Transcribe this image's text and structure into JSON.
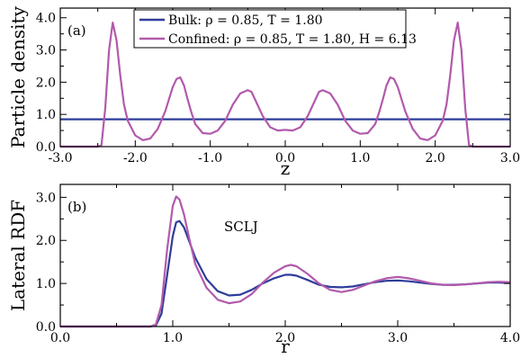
{
  "chart_data": [
    {
      "type": "line",
      "panel_label": "(a)",
      "xlabel": "z",
      "ylabel": "Particle density",
      "xlim": [
        -3.0,
        3.0
      ],
      "ylim": [
        0.0,
        4.3
      ],
      "xticks": [
        -3.0,
        -2.0,
        -1.0,
        0.0,
        1.0,
        2.0,
        3.0
      ],
      "xtick_labels": [
        "-3.0",
        "-2.0",
        "-1.0",
        "0.0",
        "1.0",
        "2.0",
        "3.0"
      ],
      "yticks": [
        0.0,
        1.0,
        2.0,
        3.0,
        4.0
      ],
      "ytick_labels": [
        "0.0",
        "1.0",
        "2.0",
        "3.0",
        "4.0"
      ],
      "legend_position": "top",
      "series": [
        {
          "name": "Bulk: ρ = 0.85, T = 1.80",
          "color": "#2e3d9a",
          "x": [
            -3.0,
            3.0
          ],
          "y": [
            0.85,
            0.85
          ]
        },
        {
          "name": "Confined: ρ = 0.85, T = 1.80, H = 6.13",
          "color": "#b25aac",
          "x": [
            -3.0,
            -2.6,
            -2.5,
            -2.45,
            -2.4,
            -2.35,
            -2.3,
            -2.25,
            -2.2,
            -2.15,
            -2.1,
            -2.0,
            -1.9,
            -1.8,
            -1.7,
            -1.6,
            -1.5,
            -1.45,
            -1.4,
            -1.35,
            -1.3,
            -1.25,
            -1.2,
            -1.1,
            -1.0,
            -0.9,
            -0.8,
            -0.7,
            -0.6,
            -0.5,
            -0.45,
            -0.4,
            -0.3,
            -0.2,
            -0.1,
            0.0,
            0.1,
            0.2,
            0.3,
            0.4,
            0.45,
            0.5,
            0.6,
            0.7,
            0.8,
            0.9,
            1.0,
            1.1,
            1.2,
            1.25,
            1.3,
            1.35,
            1.4,
            1.45,
            1.5,
            1.6,
            1.7,
            1.8,
            1.9,
            2.0,
            2.1,
            2.15,
            2.2,
            2.25,
            2.3,
            2.35,
            2.4,
            2.45,
            2.5,
            2.6,
            3.0
          ],
          "y": [
            0.0,
            0.0,
            0.0,
            0.05,
            1.2,
            3.0,
            3.85,
            3.3,
            2.2,
            1.3,
            0.8,
            0.35,
            0.2,
            0.25,
            0.55,
            1.1,
            1.85,
            2.1,
            2.15,
            1.9,
            1.45,
            1.05,
            0.7,
            0.42,
            0.4,
            0.5,
            0.8,
            1.3,
            1.65,
            1.75,
            1.7,
            1.45,
            0.95,
            0.6,
            0.5,
            0.52,
            0.5,
            0.6,
            0.95,
            1.45,
            1.7,
            1.75,
            1.65,
            1.3,
            0.8,
            0.5,
            0.4,
            0.42,
            0.7,
            1.05,
            1.45,
            1.9,
            2.15,
            2.1,
            1.85,
            1.1,
            0.55,
            0.25,
            0.2,
            0.35,
            0.8,
            1.3,
            2.2,
            3.3,
            3.85,
            3.0,
            1.2,
            0.05,
            0.0,
            0.0,
            0.0
          ]
        }
      ]
    },
    {
      "type": "line",
      "panel_label": "(b)",
      "annotation": "SCLJ",
      "xlabel": "r",
      "ylabel": "Lateral RDF",
      "xlim": [
        0.0,
        4.0
      ],
      "ylim": [
        0.0,
        3.3
      ],
      "xticks": [
        0.0,
        1.0,
        2.0,
        3.0,
        4.0
      ],
      "xtick_labels": [
        "0.0",
        "1.0",
        "2.0",
        "3.0",
        "4.0"
      ],
      "yticks": [
        0.0,
        1.0,
        2.0,
        3.0
      ],
      "ytick_labels": [
        "0.0",
        "1.0",
        "2.0",
        "3.0"
      ],
      "series": [
        {
          "color": "#2e3d9a",
          "x": [
            0.0,
            0.8,
            0.85,
            0.9,
            0.95,
            1.0,
            1.03,
            1.06,
            1.1,
            1.15,
            1.2,
            1.3,
            1.4,
            1.5,
            1.6,
            1.7,
            1.8,
            1.9,
            2.0,
            2.05,
            2.1,
            2.2,
            2.3,
            2.4,
            2.5,
            2.6,
            2.7,
            2.8,
            2.9,
            3.0,
            3.1,
            3.2,
            3.3,
            3.4,
            3.5,
            3.6,
            3.7,
            3.8,
            3.9,
            4.0
          ],
          "y": [
            0.0,
            0.0,
            0.03,
            0.3,
            1.2,
            2.1,
            2.42,
            2.45,
            2.3,
            1.95,
            1.6,
            1.1,
            0.82,
            0.72,
            0.74,
            0.85,
            1.0,
            1.12,
            1.2,
            1.2,
            1.18,
            1.08,
            0.97,
            0.92,
            0.91,
            0.93,
            0.98,
            1.03,
            1.06,
            1.07,
            1.05,
            1.02,
            0.99,
            0.97,
            0.97,
            0.98,
            1.0,
            1.02,
            1.02,
            1.01
          ]
        },
        {
          "color": "#b25aac",
          "x": [
            0.0,
            0.8,
            0.85,
            0.9,
            0.95,
            1.0,
            1.03,
            1.06,
            1.1,
            1.15,
            1.2,
            1.3,
            1.4,
            1.5,
            1.6,
            1.7,
            1.8,
            1.9,
            2.0,
            2.05,
            2.1,
            2.2,
            2.3,
            2.4,
            2.5,
            2.6,
            2.7,
            2.8,
            2.9,
            3.0,
            3.1,
            3.2,
            3.3,
            3.4,
            3.5,
            3.6,
            3.7,
            3.8,
            3.9,
            4.0
          ],
          "y": [
            0.0,
            0.0,
            0.05,
            0.5,
            1.8,
            2.8,
            3.02,
            2.95,
            2.6,
            2.0,
            1.45,
            0.9,
            0.62,
            0.54,
            0.58,
            0.75,
            1.02,
            1.25,
            1.4,
            1.43,
            1.4,
            1.22,
            1.0,
            0.85,
            0.8,
            0.85,
            0.95,
            1.05,
            1.12,
            1.15,
            1.12,
            1.06,
            1.0,
            0.97,
            0.96,
            0.98,
            1.0,
            1.03,
            1.04,
            1.03
          ]
        }
      ]
    }
  ]
}
